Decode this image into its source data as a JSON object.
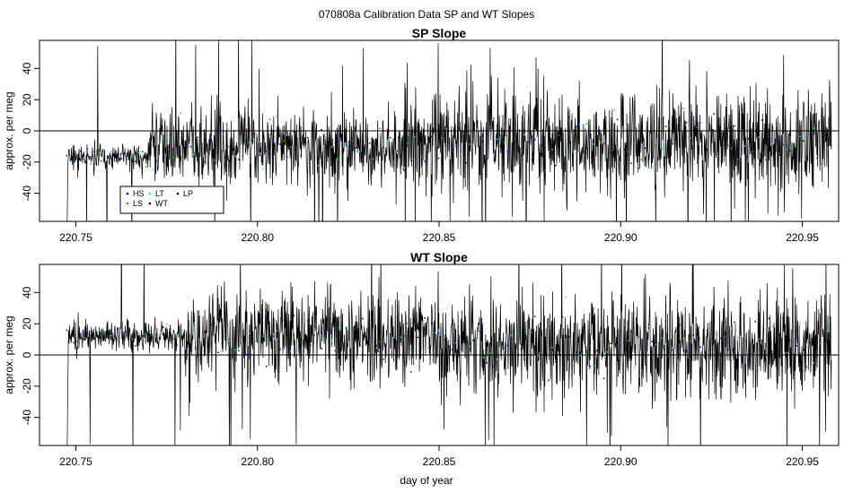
{
  "figure": {
    "suptitle": "070808a   Calibration Data SP and WT Slopes",
    "xlabel": "day of year"
  },
  "chart_data": [
    {
      "type": "line",
      "title": "SP Slope",
      "xlabel": "",
      "ylabel": "approx. per meg",
      "xlim": [
        220.74,
        220.96
      ],
      "ylim": [
        -58,
        58
      ],
      "x_ticks": [
        "220.75",
        "220.80",
        "220.85",
        "220.90",
        "220.95"
      ],
      "y_ticks": [
        "-40",
        "-20",
        "0",
        "20",
        "40"
      ],
      "x_range": [
        220.7475,
        220.958
      ],
      "hline": 0,
      "grid": false,
      "legend": {
        "position": "lower-left",
        "entries": [
          {
            "label": "HS",
            "color": "#0000ff"
          },
          {
            "label": "LT",
            "color": "#00e5ee"
          },
          {
            "label": "LP",
            "color": "#000080"
          },
          {
            "label": "LS",
            "color": "#00cc00"
          },
          {
            "label": "WT",
            "color": "#000000"
          }
        ]
      },
      "series": [
        {
          "name": "WT",
          "color": "#000000",
          "mean": -10,
          "noise": 12,
          "n_points": 2000,
          "segments": [
            {
              "x0": 220.7475,
              "x1": 220.77,
              "mean": -17,
              "noise": 4
            },
            {
              "x0": 220.77,
              "x1": 220.84,
              "mean": -10,
              "noise": 12
            },
            {
              "x0": 220.84,
              "x1": 220.958,
              "mean": -7,
              "noise": 16
            }
          ]
        }
      ]
    },
    {
      "type": "line",
      "title": "WT Slope",
      "xlabel": "day of year",
      "ylabel": "approx. per meg",
      "xlim": [
        220.74,
        220.96
      ],
      "ylim": [
        -58,
        58
      ],
      "x_ticks": [
        "220.75",
        "220.80",
        "220.85",
        "220.90",
        "220.95"
      ],
      "y_ticks": [
        "-40",
        "-20",
        "0",
        "20",
        "40"
      ],
      "x_range": [
        220.7475,
        220.958
      ],
      "hline": 0,
      "grid": false,
      "series": [
        {
          "name": "WT",
          "color": "#000000",
          "mean": 10,
          "noise": 12,
          "n_points": 2000,
          "segments": [
            {
              "x0": 220.7475,
              "x1": 220.78,
              "mean": 12,
              "noise": 5
            },
            {
              "x0": 220.78,
              "x1": 220.85,
              "mean": 12,
              "noise": 14
            },
            {
              "x0": 220.85,
              "x1": 220.958,
              "mean": 6,
              "noise": 16
            }
          ]
        }
      ]
    }
  ]
}
